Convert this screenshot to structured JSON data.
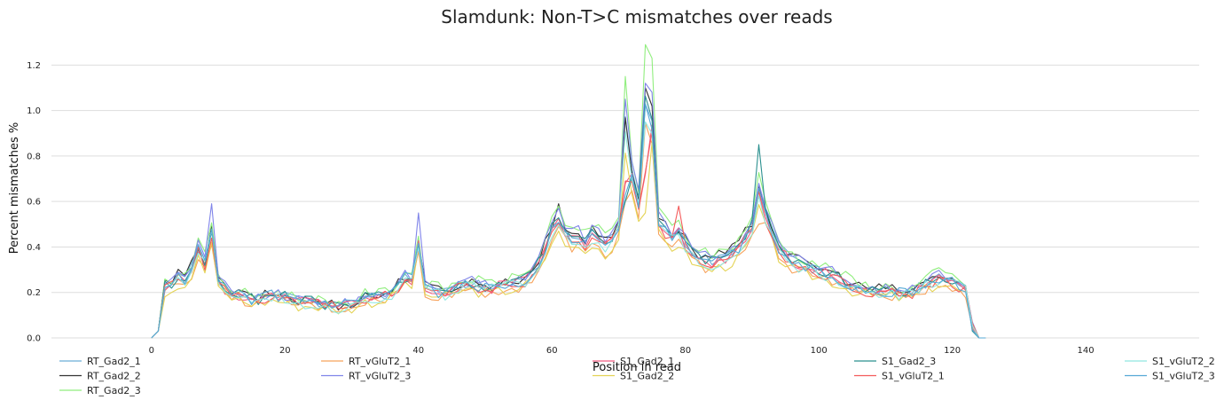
{
  "chart_data": {
    "type": "line",
    "title": "Slamdunk: Non-T>C mismatches over reads",
    "xlabel": "Position in read",
    "ylabel": "Percent mismatches %",
    "xlim": [
      -15,
      157
    ],
    "ylim": [
      0,
      1.33
    ],
    "xticks": [
      0,
      20,
      40,
      60,
      80,
      100,
      120,
      140
    ],
    "yticks": [
      0.0,
      0.2,
      0.4,
      0.6,
      0.8,
      1.0,
      1.2
    ],
    "grid": true,
    "legend_position": "bottom",
    "series": [
      {
        "name": "RT_Gad2_1",
        "color": "#6baed6"
      },
      {
        "name": "RT_Gad2_2",
        "color": "#333333"
      },
      {
        "name": "RT_Gad2_3",
        "color": "#90ee7e"
      },
      {
        "name": "RT_vGluT2_1",
        "color": "#f7a35c"
      },
      {
        "name": "RT_vGluT2_3",
        "color": "#8085e9"
      },
      {
        "name": "S1_Gad2_1",
        "color": "#f15c80"
      },
      {
        "name": "S1_Gad2_2",
        "color": "#e4d354"
      },
      {
        "name": "S1_Gad2_3",
        "color": "#2b908f"
      },
      {
        "name": "S1_vGluT2_1",
        "color": "#f45b5b"
      },
      {
        "name": "S1_vGluT2_2",
        "color": "#91e8e1"
      },
      {
        "name": "S1_vGluT2_3",
        "color": "#55a9d6"
      }
    ],
    "base_profile": [
      [
        0,
        0.0
      ],
      [
        1,
        0.03
      ],
      [
        2,
        0.23
      ],
      [
        3,
        0.24
      ],
      [
        4,
        0.27
      ],
      [
        5,
        0.26
      ],
      [
        6,
        0.31
      ],
      [
        7,
        0.4
      ],
      [
        8,
        0.33
      ],
      [
        9,
        0.48
      ],
      [
        10,
        0.24
      ],
      [
        11,
        0.22
      ],
      [
        12,
        0.2
      ],
      [
        14,
        0.18
      ],
      [
        16,
        0.17
      ],
      [
        18,
        0.19
      ],
      [
        20,
        0.18
      ],
      [
        22,
        0.16
      ],
      [
        24,
        0.16
      ],
      [
        26,
        0.15
      ],
      [
        28,
        0.14
      ],
      [
        30,
        0.15
      ],
      [
        32,
        0.18
      ],
      [
        34,
        0.18
      ],
      [
        36,
        0.2
      ],
      [
        38,
        0.27
      ],
      [
        39,
        0.26
      ],
      [
        40,
        0.42
      ],
      [
        41,
        0.22
      ],
      [
        42,
        0.21
      ],
      [
        44,
        0.2
      ],
      [
        46,
        0.23
      ],
      [
        48,
        0.24
      ],
      [
        50,
        0.22
      ],
      [
        52,
        0.23
      ],
      [
        54,
        0.24
      ],
      [
        56,
        0.26
      ],
      [
        58,
        0.33
      ],
      [
        59,
        0.4
      ],
      [
        60,
        0.48
      ],
      [
        61,
        0.52
      ],
      [
        62,
        0.48
      ],
      [
        63,
        0.44
      ],
      [
        64,
        0.45
      ],
      [
        65,
        0.42
      ],
      [
        66,
        0.46
      ],
      [
        67,
        0.44
      ],
      [
        68,
        0.42
      ],
      [
        69,
        0.44
      ],
      [
        70,
        0.5
      ],
      [
        71,
        0.95
      ],
      [
        72,
        0.72
      ],
      [
        73,
        0.6
      ],
      [
        74,
        1.05
      ],
      [
        75,
        0.95
      ],
      [
        76,
        0.52
      ],
      [
        77,
        0.48
      ],
      [
        78,
        0.45
      ],
      [
        79,
        0.47
      ],
      [
        80,
        0.42
      ],
      [
        82,
        0.35
      ],
      [
        84,
        0.34
      ],
      [
        86,
        0.36
      ],
      [
        88,
        0.4
      ],
      [
        90,
        0.5
      ],
      [
        91,
        0.66
      ],
      [
        92,
        0.55
      ],
      [
        94,
        0.4
      ],
      [
        96,
        0.34
      ],
      [
        98,
        0.32
      ],
      [
        100,
        0.3
      ],
      [
        102,
        0.28
      ],
      [
        104,
        0.25
      ],
      [
        106,
        0.22
      ],
      [
        108,
        0.21
      ],
      [
        110,
        0.21
      ],
      [
        112,
        0.2
      ],
      [
        114,
        0.2
      ],
      [
        116,
        0.24
      ],
      [
        118,
        0.27
      ],
      [
        120,
        0.25
      ],
      [
        122,
        0.22
      ],
      [
        123,
        0.05
      ],
      [
        124,
        0.0
      ]
    ],
    "series_variation": [
      {
        "scale": 1.0,
        "peaks": {}
      },
      {
        "scale": 1.03,
        "peaks": {
          "61": 0.59,
          "74": 1.1,
          "75": 1.02
        }
      },
      {
        "scale": 1.08,
        "peaks": {
          "71": 1.15,
          "74": 1.29,
          "75": 1.23,
          "61": 0.58
        }
      },
      {
        "scale": 0.9,
        "peaks": {
          "91": 0.5,
          "71": 0.6
        }
      },
      {
        "scale": 1.05,
        "peaks": {
          "9": 0.59,
          "40": 0.55,
          "71": 1.05,
          "74": 1.12,
          "75": 1.08
        }
      },
      {
        "scale": 0.98,
        "peaks": {
          "71": 0.68,
          "74": 0.72
        }
      },
      {
        "scale": 0.88,
        "peaks": {
          "74": 0.55
        }
      },
      {
        "scale": 1.0,
        "peaks": {
          "91": 0.85,
          "71": 0.6
        }
      },
      {
        "scale": 0.96,
        "peaks": {
          "71": 0.69,
          "74": 0.73,
          "79": 0.58
        }
      },
      {
        "scale": 0.95,
        "peaks": {
          "74": 0.95
        }
      },
      {
        "scale": 0.98,
        "peaks": {
          "71": 0.63
        }
      }
    ]
  }
}
